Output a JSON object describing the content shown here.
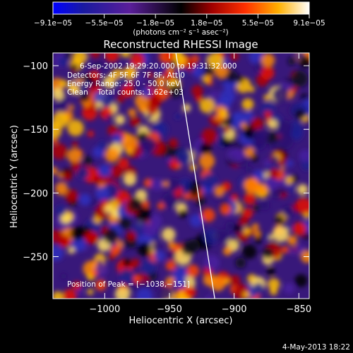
{
  "chart_data": {
    "type": "heatmap",
    "title": "Reconstructed RHESSI Image",
    "xlabel": "Heliocentric X (arcsec)",
    "ylabel": "Heliocentric Y (arcsec)",
    "xlim": [
      -1040,
      -842
    ],
    "ylim": [
      -283,
      -90
    ],
    "xticks": [
      -1000,
      -950,
      -900,
      -850
    ],
    "yticks": [
      -100,
      -150,
      -200,
      -250
    ],
    "xtick_labels": [
      "−1000",
      "−950",
      "−900",
      "−850"
    ],
    "ytick_labels": [
      "−100",
      "−150",
      "−200",
      "−250"
    ],
    "colorbar": {
      "min": -9.1e-05,
      "max": 9.1e-05,
      "tick_labels": [
        "−9.1e−05",
        "−5.5e−05",
        "−1.8e−05",
        "1.8e−05",
        "5.5e−05",
        "9.1e−05"
      ],
      "unit_label": "(photons cm⁻² s⁻¹ asec⁻²)"
    },
    "annotations": [
      "6-Sep-2002 19:29:20.000 to 19:31:32.000",
      "Detectors: 4F 5F 6F 7F 8F, Att 0",
      "Energy Range: 25.0 - 50.0 keV",
      "Clean    Total counts: 1.62e+03"
    ],
    "peak_label": "Position of Peak = [−1038,−151]",
    "peak": [
      -1038,
      -151
    ],
    "limb_line": [
      [
        -945,
        -90
      ],
      [
        -915,
        -283
      ]
    ],
    "grid": false
  },
  "footer": {
    "timestamp": "4-May-2013 18:22"
  }
}
